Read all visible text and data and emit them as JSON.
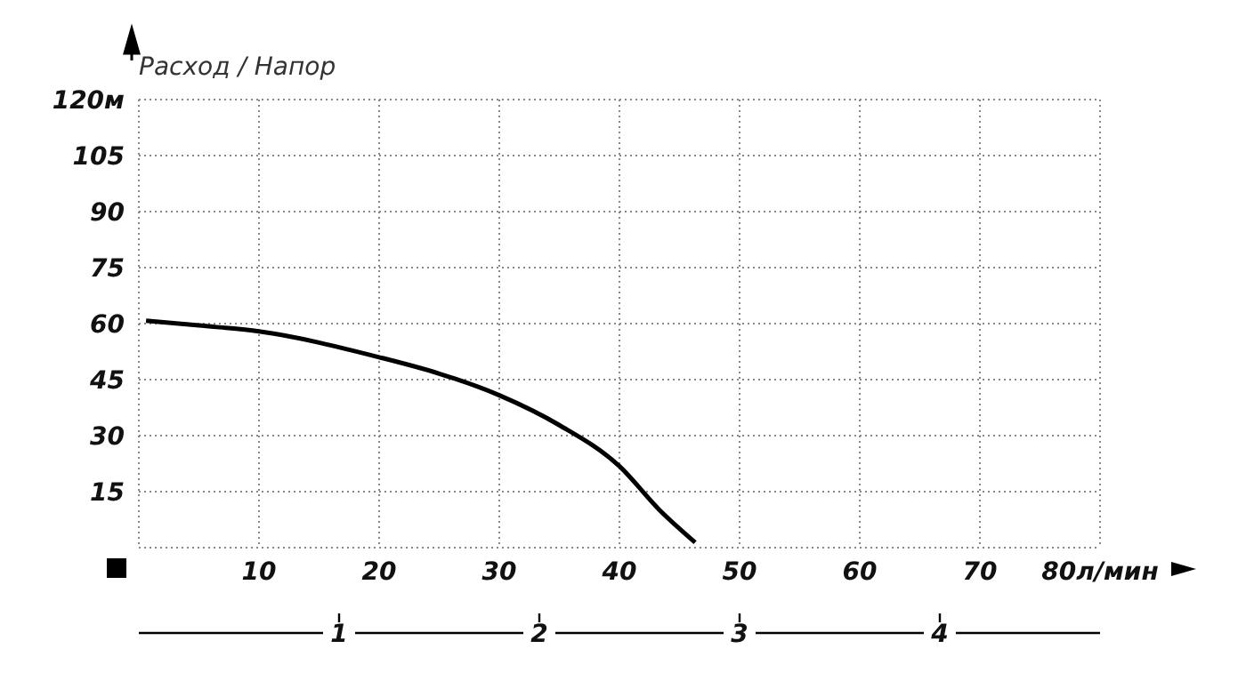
{
  "chart_data": {
    "type": "line",
    "title": "Расход / Напор",
    "x": [
      0.6,
      5,
      10,
      20,
      25,
      30,
      35,
      40,
      43.3,
      46.3
    ],
    "series": [
      {
        "color": "#000000",
        "values": [
          60.8,
          59.5,
          57.9,
          51,
          46.6,
          40.8,
          32.8,
          21.8,
          10.2,
          1.4
        ]
      }
    ],
    "xlim": [
      0,
      80
    ],
    "xticks": [
      10,
      20,
      30,
      40,
      50,
      60,
      70,
      {
        "value": 80,
        "label": "80л/мин"
      }
    ],
    "ylim": [
      0,
      120
    ],
    "yticks": [
      15,
      30,
      45,
      60,
      75,
      90,
      105,
      {
        "value": 120,
        "label": "120м"
      }
    ],
    "x2lim": [
      0,
      4.8
    ],
    "x2ticks": [
      1,
      2,
      3,
      4
    ],
    "grid": true,
    "marker": "none",
    "line_style": "solid"
  }
}
